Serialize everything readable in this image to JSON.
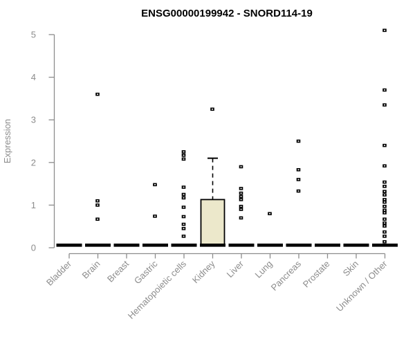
{
  "chart_data": {
    "type": "boxplot",
    "title": "ENSG00000199942 - SNORD114-19",
    "ylabel": "Expression",
    "xlabel": "",
    "ylim": [
      0,
      5
    ],
    "yticks": [
      0,
      1,
      2,
      3,
      4,
      5
    ],
    "grid": false,
    "legend": "none",
    "categories": [
      "Bladder",
      "Brain",
      "Breast",
      "Gastric",
      "Hematopoietic cells",
      "Kidney",
      "Liver",
      "Lung",
      "Pancreas",
      "Prostate",
      "Skin",
      "Unknown / Other"
    ],
    "medians": [
      0,
      0,
      0,
      0,
      0,
      0,
      0,
      0,
      0,
      0,
      0,
      0
    ],
    "boxes": [
      {
        "category": "Kidney",
        "q1": 0.05,
        "median": 0,
        "q3": 1.13,
        "whisker_low": 0,
        "whisker_high": 2.1,
        "outliers": [
          3.25
        ]
      }
    ],
    "points": {
      "Bladder": [],
      "Brain": [
        3.6,
        1.1,
        1.0,
        0.67
      ],
      "Breast": [],
      "Gastric": [
        1.48,
        0.74
      ],
      "Hematopoietic cells": [
        2.25,
        2.17,
        2.08,
        1.42,
        1.25,
        1.17,
        0.95,
        0.73,
        0.55,
        0.45,
        0.27
      ],
      "Kidney": [
        3.25
      ],
      "Liver": [
        1.9,
        1.39,
        1.28,
        1.2,
        1.13,
        0.97,
        0.9,
        0.7
      ],
      "Lung": [
        0.8
      ],
      "Pancreas": [
        2.5,
        1.83,
        1.6,
        1.33
      ],
      "Prostate": [],
      "Skin": [],
      "Unknown / Other": [
        5.1,
        3.7,
        3.35,
        2.4,
        1.92,
        1.54,
        1.44,
        1.32,
        1.24,
        1.13,
        1.07,
        0.97,
        0.88,
        0.82,
        0.67,
        0.58,
        0.51,
        0.37,
        0.27,
        0.14
      ]
    },
    "colors": {
      "axis": "#8C8C8C",
      "tick_labels": "#8C8C8C",
      "title": "#000000",
      "points": "#000000",
      "median_bar": "#000000",
      "box_fill": "#ECE8CB",
      "box_border": "#000000",
      "background": "#FFFFFF"
    }
  }
}
